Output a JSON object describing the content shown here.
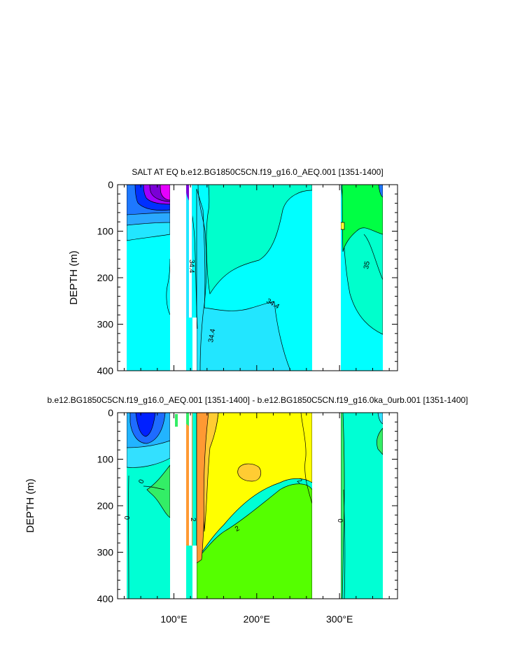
{
  "colors": {
    "ocean_fill": "#00ffff",
    "top": {
      "deep_purple": "#7a00d6",
      "magenta": "#e600ff",
      "violet": "#a000ff",
      "blue": "#0030ff",
      "mid_blue": "#1e78ff",
      "sky_blue": "#2aa8ff",
      "light_blue": "#22e6ff",
      "cyan": "#00ffff",
      "aquamarine": "#00ffcc",
      "green": "#00ff44",
      "yellow": "#ffff33"
    },
    "bottom": {
      "blue": "#0020ff",
      "mid_blue": "#1e6cff",
      "sky_blue": "#22b4ff",
      "light_blue": "#33e0ff",
      "aquamarine": "#00ffd4",
      "green_light": "#33ee66",
      "green": "#55ff00",
      "yellow": "#ffff00",
      "light_orange": "#ffcc33",
      "orange": "#ff9933"
    }
  },
  "chart_data": [
    {
      "type": "contour",
      "title": "SALT AT EQ b.e12.BG1850C5CN.f19_g16.0_AEQ.001 [1351-1400]",
      "ylabel": "DEPTH (m)",
      "xlabel": "",
      "xlim": [
        32,
        370
      ],
      "ylim": [
        400,
        0
      ],
      "yticks": [
        "0",
        "100",
        "200",
        "300",
        "400"
      ],
      "xticks": [],
      "contour_labels": [
        "34.4",
        "34.4",
        "34.4",
        "35"
      ]
    },
    {
      "type": "contour",
      "title": "b.e12.BG1850C5CN.f19_g16.0_AEQ.001 [1351-1400] - b.e12.BG1850C5CN.f19_g16.0ka_0urb.001 [1351-1400]",
      "ylabel": "DEPTH (m)",
      "xlabel": "",
      "xlim": [
        32,
        370
      ],
      "ylim": [
        400,
        0
      ],
      "yticks": [
        "0",
        "100",
        "200",
        "300",
        "400"
      ],
      "xticks": [
        "100°E",
        "200°E",
        "300°E"
      ],
      "contour_labels": [
        "0",
        "0",
        "0",
        "2",
        "2",
        "2"
      ]
    }
  ]
}
